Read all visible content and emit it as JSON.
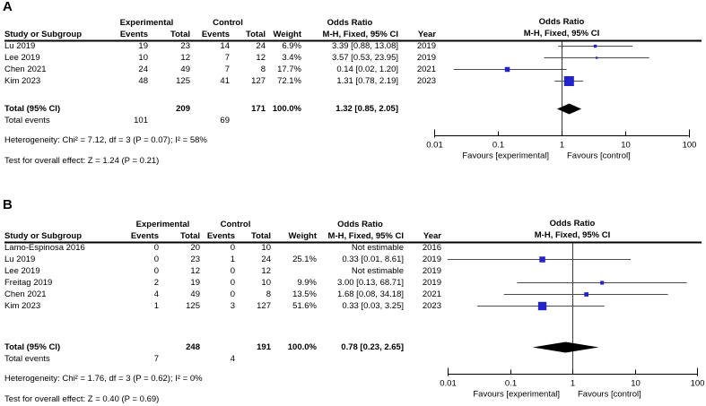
{
  "marker_color": "#2323CC",
  "ci_line_color": "#4a4a4a",
  "diamond_color": "#000000",
  "chart_data": [
    {
      "type": "forest",
      "panel_label": "A",
      "group_headers": {
        "experimental": "Experimental",
        "control": "Control",
        "odds_ratio": "Odds Ratio"
      },
      "columns": [
        "Study or Subgroup",
        "Events",
        "Total",
        "Events",
        "Total",
        "Weight",
        "M-H, Fixed, 95% CI",
        "Year"
      ],
      "plot_title": "Odds Ratio",
      "plot_subtitle": "M-H, Fixed, 95% CI",
      "rows": [
        {
          "study": "Lu 2019",
          "e_events": "19",
          "e_total": "23",
          "c_events": "14",
          "c_total": "24",
          "weight": "6.9%",
          "weight_val": 6.9,
          "ci_text": "3.39 [0.88, 13.08]",
          "year": "2019",
          "or": 3.39,
          "lo": 0.88,
          "hi": 13.08,
          "estimable": true
        },
        {
          "study": "Lee 2019",
          "e_events": "10",
          "e_total": "12",
          "c_events": "7",
          "c_total": "12",
          "weight": "3.4%",
          "weight_val": 3.4,
          "ci_text": "3.57 [0.53, 23.95]",
          "year": "2019",
          "or": 3.57,
          "lo": 0.53,
          "hi": 23.95,
          "estimable": true
        },
        {
          "study": "Chen 2021",
          "e_events": "24",
          "e_total": "49",
          "c_events": "7",
          "c_total": "8",
          "weight": "17.7%",
          "weight_val": 17.7,
          "ci_text": "0.14 [0.02, 1.20]",
          "year": "2021",
          "or": 0.14,
          "lo": 0.02,
          "hi": 1.2,
          "estimable": true
        },
        {
          "study": "Kim 2023",
          "e_events": "48",
          "e_total": "125",
          "c_events": "41",
          "c_total": "127",
          "weight": "72.1%",
          "weight_val": 72.1,
          "ci_text": "1.31 [0.78, 2.19]",
          "year": "2023",
          "or": 1.31,
          "lo": 0.78,
          "hi": 2.19,
          "estimable": true
        }
      ],
      "total": {
        "label": "Total (95% CI)",
        "e_total": "209",
        "c_total": "171",
        "weight": "100.0%",
        "ci_text": "1.32 [0.85, 2.05]",
        "or": 1.32,
        "lo": 0.85,
        "hi": 2.05
      },
      "total_events": {
        "label": "Total events",
        "e": "101",
        "c": "69"
      },
      "heterogeneity": "Heterogeneity: Chi² = 7.12, df = 3 (P = 0.07); I² = 58%",
      "overall_effect": "Test for overall effect: Z = 1.24 (P = 0.21)",
      "axis": {
        "scale": "log",
        "ticks": [
          0.01,
          0.1,
          1,
          10,
          100
        ],
        "tick_labels": [
          "0.01",
          "0.1",
          "1",
          "10",
          "100"
        ],
        "favours_left": "Favours [experimental]",
        "favours_right": "Favours [control]"
      }
    },
    {
      "type": "forest",
      "panel_label": "B",
      "group_headers": {
        "experimental": "Experimental",
        "control": "Control",
        "odds_ratio": "Odds Ratio"
      },
      "columns": [
        "Study or Subgroup",
        "Events",
        "Total",
        "Events",
        "Total",
        "Weight",
        "M-H, Fixed, 95% CI",
        "Year"
      ],
      "plot_title": "Odds Ratio",
      "plot_subtitle": "M-H, Fixed, 95% CI",
      "rows": [
        {
          "study": "Lamo-Espinosa 2016",
          "e_events": "0",
          "e_total": "20",
          "c_events": "0",
          "c_total": "10",
          "weight": "",
          "weight_val": 0,
          "ci_text": "Not estimable",
          "year": "2016",
          "estimable": false
        },
        {
          "study": "Lu 2019",
          "e_events": "0",
          "e_total": "23",
          "c_events": "1",
          "c_total": "24",
          "weight": "25.1%",
          "weight_val": 25.1,
          "ci_text": "0.33 [0.01, 8.61]",
          "year": "2019",
          "or": 0.33,
          "lo": 0.01,
          "hi": 8.61,
          "estimable": true
        },
        {
          "study": "Lee 2019",
          "e_events": "0",
          "e_total": "12",
          "c_events": "0",
          "c_total": "12",
          "weight": "",
          "weight_val": 0,
          "ci_text": "Not estimable",
          "year": "2019",
          "estimable": false
        },
        {
          "study": "Freitag 2019",
          "e_events": "2",
          "e_total": "19",
          "c_events": "0",
          "c_total": "10",
          "weight": "9.9%",
          "weight_val": 9.9,
          "ci_text": "3.00 [0.13, 68.71]",
          "year": "2019",
          "or": 3.0,
          "lo": 0.13,
          "hi": 68.71,
          "estimable": true
        },
        {
          "study": "Chen 2021",
          "e_events": "4",
          "e_total": "49",
          "c_events": "0",
          "c_total": "8",
          "weight": "13.5%",
          "weight_val": 13.5,
          "ci_text": "1.68 [0.08, 34.18]",
          "year": "2021",
          "or": 1.68,
          "lo": 0.08,
          "hi": 34.18,
          "estimable": true
        },
        {
          "study": "Kim 2023",
          "e_events": "1",
          "e_total": "125",
          "c_events": "3",
          "c_total": "127",
          "weight": "51.6%",
          "weight_val": 51.6,
          "ci_text": "0.33 [0.03, 3.25]",
          "year": "2023",
          "or": 0.33,
          "lo": 0.03,
          "hi": 3.25,
          "estimable": true
        }
      ],
      "total": {
        "label": "Total (95% CI)",
        "e_total": "248",
        "c_total": "191",
        "weight": "100.0%",
        "ci_text": "0.78 [0.23, 2.65]",
        "or": 0.78,
        "lo": 0.23,
        "hi": 2.65
      },
      "total_events": {
        "label": "Total events",
        "e": "7",
        "c": "4"
      },
      "heterogeneity": "Heterogeneity: Chi² = 1.76, df = 3 (P = 0.62); I² = 0%",
      "overall_effect": "Test for overall effect: Z = 0.40 (P = 0.69)",
      "axis": {
        "scale": "log",
        "ticks": [
          0.01,
          0.1,
          1,
          10,
          100
        ],
        "tick_labels": [
          "0.01",
          "0.1",
          "1",
          "10",
          "100"
        ],
        "favours_left": "Favours [experimental]",
        "favours_right": "Favours [control]"
      }
    }
  ]
}
